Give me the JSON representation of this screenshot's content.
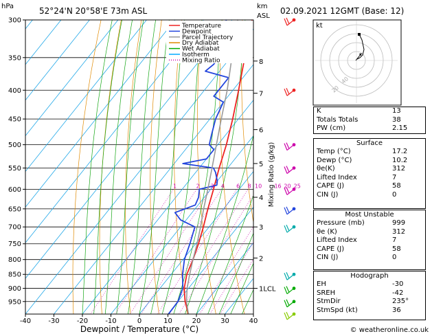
{
  "header": {
    "location": "52°24'N  20°58'E  73m  ASL",
    "date": "02.09.2021  12GMT  (Base: 12)",
    "hpa_label": "hPa",
    "km_label": "km",
    "asl_label": "ASL",
    "mixing_ratio_axis": "Mixing Ratio (g/kg)",
    "xlabel": "Dewpoint / Temperature (°C)",
    "copyright": "© weatheronline.co.uk"
  },
  "legend": [
    {
      "label": "Temperature",
      "color": "#ee2222"
    },
    {
      "label": "Dewpoint",
      "color": "#2244dd"
    },
    {
      "label": "Parcel Trajectory",
      "color": "#999999"
    },
    {
      "label": "Dry Adiabat",
      "color": "#dd8800"
    },
    {
      "label": "Wet Adiabat",
      "color": "#00aa00"
    },
    {
      "label": "Isotherm",
      "color": "#00aaff"
    },
    {
      "label": "Mixing Ratio",
      "color": "#cc00aa"
    }
  ],
  "chart_data": {
    "type": "line",
    "title": "52°24'N  20°58'E  73m  ASL",
    "xlabel": "Dewpoint / Temperature (°C)",
    "ylabel": "hPa",
    "xlim": [
      -40,
      40
    ],
    "ylim": [
      1000,
      300
    ],
    "yscale": "log",
    "x_ticks": [
      "-40",
      "-30",
      "-20",
      "-10",
      "0",
      "10",
      "20",
      "30",
      "40"
    ],
    "pressure_ticks": [
      "300",
      "350",
      "400",
      "450",
      "500",
      "550",
      "600",
      "650",
      "700",
      "750",
      "800",
      "850",
      "900",
      "950"
    ],
    "km_ticks": [
      {
        "p": 355,
        "label": "8"
      },
      {
        "p": 405,
        "label": "7"
      },
      {
        "p": 470,
        "label": "6"
      },
      {
        "p": 540,
        "label": "5"
      },
      {
        "p": 620,
        "label": "4"
      },
      {
        "p": 700,
        "label": "3"
      },
      {
        "p": 795,
        "label": "2"
      },
      {
        "p": 900,
        "label": "1LCL"
      }
    ],
    "mixing_ratio_labels": [
      "1",
      "2",
      "3",
      "4",
      "6",
      "8",
      "10",
      "16",
      "20",
      "25"
    ],
    "series": [
      {
        "name": "Temperature",
        "color": "#ee2222",
        "points": [
          [
            1000,
            17.2
          ],
          [
            950,
            12.5
          ],
          [
            900,
            8.5
          ],
          [
            850,
            5.5
          ],
          [
            800,
            3.5
          ],
          [
            750,
            1
          ],
          [
            700,
            -2
          ],
          [
            650,
            -5.5
          ],
          [
            600,
            -9
          ],
          [
            550,
            -13
          ],
          [
            500,
            -17
          ],
          [
            450,
            -22
          ],
          [
            400,
            -28
          ],
          [
            350,
            -35
          ],
          [
            300,
            -43
          ]
        ]
      },
      {
        "name": "Dewpoint",
        "color": "#2244dd",
        "points": [
          [
            1000,
            10.2
          ],
          [
            950,
            10
          ],
          [
            900,
            8
          ],
          [
            850,
            4
          ],
          [
            800,
            0.5
          ],
          [
            750,
            -2
          ],
          [
            700,
            -5
          ],
          [
            680,
            -12
          ],
          [
            660,
            -16
          ],
          [
            640,
            -11
          ],
          [
            620,
            -12
          ],
          [
            600,
            -14
          ],
          [
            590,
            -9
          ],
          [
            580,
            -10
          ],
          [
            570,
            -11.5
          ],
          [
            560,
            -13
          ],
          [
            550,
            -15
          ],
          [
            540,
            -27
          ],
          [
            530,
            -20
          ],
          [
            520,
            -20
          ],
          [
            510,
            -20
          ],
          [
            500,
            -23
          ],
          [
            480,
            -25
          ],
          [
            450,
            -28
          ],
          [
            420,
            -30
          ],
          [
            410,
            -35
          ],
          [
            400,
            -35
          ],
          [
            380,
            -35
          ],
          [
            370,
            -45
          ],
          [
            360,
            -44
          ],
          [
            350,
            -44
          ],
          [
            330,
            -44
          ],
          [
            320,
            -49
          ],
          [
            310,
            -51
          ],
          [
            300,
            -52
          ]
        ]
      },
      {
        "name": "Parcel Trajectory",
        "color": "#999999",
        "points": [
          [
            1000,
            17.2
          ],
          [
            950,
            13
          ],
          [
            900,
            9.5
          ],
          [
            850,
            6.5
          ],
          [
            800,
            3.5
          ],
          [
            750,
            0.5
          ],
          [
            700,
            -3
          ],
          [
            650,
            -7
          ],
          [
            600,
            -11
          ],
          [
            550,
            -15.5
          ],
          [
            500,
            -20.5
          ],
          [
            450,
            -26
          ],
          [
            400,
            -32
          ],
          [
            350,
            -39.5
          ],
          [
            300,
            -48
          ]
        ]
      }
    ],
    "wind_barbs": [
      {
        "p": 300,
        "color": "#ee2222"
      },
      {
        "p": 400,
        "color": "#ee2222"
      },
      {
        "p": 500,
        "color": "#cc00aa"
      },
      {
        "p": 550,
        "color": "#cc00aa"
      },
      {
        "p": 600,
        "color": "#cc00aa"
      },
      {
        "p": 650,
        "color": "#2244dd"
      },
      {
        "p": 700,
        "color": "#00aaaa"
      },
      {
        "p": 850,
        "color": "#00aaaa"
      },
      {
        "p": 900,
        "color": "#00aa00"
      },
      {
        "p": 950,
        "color": "#00aa00"
      },
      {
        "p": 1000,
        "color": "#88cc00"
      }
    ]
  },
  "hodograph": {
    "label": "kt",
    "ring_labels": [
      "20",
      "40"
    ]
  },
  "indices": [
    {
      "label": "K",
      "value": "13"
    },
    {
      "label": "Totals Totals",
      "value": "38"
    },
    {
      "label": "PW (cm)",
      "value": "2.15"
    }
  ],
  "surface": {
    "title": "Surface",
    "rows": [
      {
        "label": "Temp (°C)",
        "value": "17.2"
      },
      {
        "label": "Dewp (°C)",
        "value": "10.2"
      },
      {
        "label": "θe(K)",
        "value": "312"
      },
      {
        "label": "Lifted Index",
        "value": "7"
      },
      {
        "label": "CAPE (J)",
        "value": "58"
      },
      {
        "label": "CIN (J)",
        "value": "0"
      }
    ]
  },
  "most_unstable": {
    "title": "Most Unstable",
    "rows": [
      {
        "label": "Pressure (mb)",
        "value": "999"
      },
      {
        "label": "θe (K)",
        "value": "312"
      },
      {
        "label": "Lifted Index",
        "value": "7"
      },
      {
        "label": "CAPE (J)",
        "value": "58"
      },
      {
        "label": "CIN (J)",
        "value": "0"
      }
    ]
  },
  "hodo_table": {
    "title": "Hodograph",
    "rows": [
      {
        "label": "EH",
        "value": "-30"
      },
      {
        "label": "SREH",
        "value": "-42"
      },
      {
        "label": "StmDir",
        "value": "235°"
      },
      {
        "label": "StmSpd (kt)",
        "value": "36"
      }
    ]
  }
}
